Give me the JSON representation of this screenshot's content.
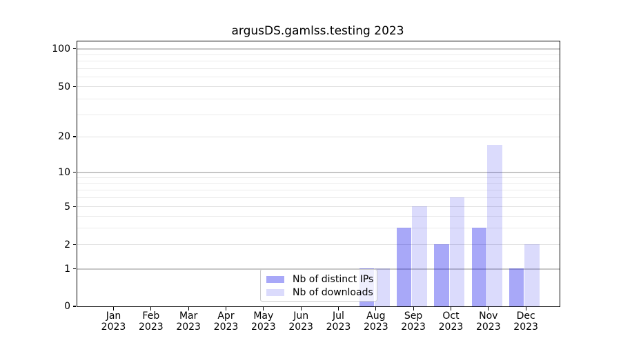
{
  "chart_data": {
    "type": "bar",
    "title": "argusDS.gamlss.testing 2023",
    "categories": [
      {
        "month": "Jan",
        "year": "2023"
      },
      {
        "month": "Feb",
        "year": "2023"
      },
      {
        "month": "Mar",
        "year": "2023"
      },
      {
        "month": "Apr",
        "year": "2023"
      },
      {
        "month": "May",
        "year": "2023"
      },
      {
        "month": "Jun",
        "year": "2023"
      },
      {
        "month": "Jul",
        "year": "2023"
      },
      {
        "month": "Aug",
        "year": "2023"
      },
      {
        "month": "Sep",
        "year": "2023"
      },
      {
        "month": "Oct",
        "year": "2023"
      },
      {
        "month": "Nov",
        "year": "2023"
      },
      {
        "month": "Dec",
        "year": "2023"
      }
    ],
    "series": [
      {
        "name": "Nb of distinct IPs",
        "color_rgba": "rgba(0,0,235,0.34)",
        "approx_hex": "#a9a9f1",
        "values": [
          0,
          0,
          0,
          0,
          0,
          0,
          0,
          1,
          3,
          2,
          3,
          1
        ]
      },
      {
        "name": "Nb of downloads",
        "color_rgba": "rgba(0,0,235,0.14)",
        "approx_hex": "#dcdcf8",
        "values": [
          0,
          0,
          0,
          0,
          0,
          0,
          0,
          1,
          5,
          6,
          17,
          2
        ]
      }
    ],
    "yticks": [
      0,
      1,
      2,
      5,
      10,
      20,
      50,
      100
    ],
    "ytick_labels": [
      "0",
      "1",
      "2",
      "5",
      "10",
      "20",
      "50",
      "100"
    ],
    "ylim": [
      0,
      120
    ],
    "yscale": "pseudo-log (0 at axis, log spacing above 1)",
    "grid": "horizontal major + log minor gridlines",
    "legend_position": "inside bottom-center"
  }
}
